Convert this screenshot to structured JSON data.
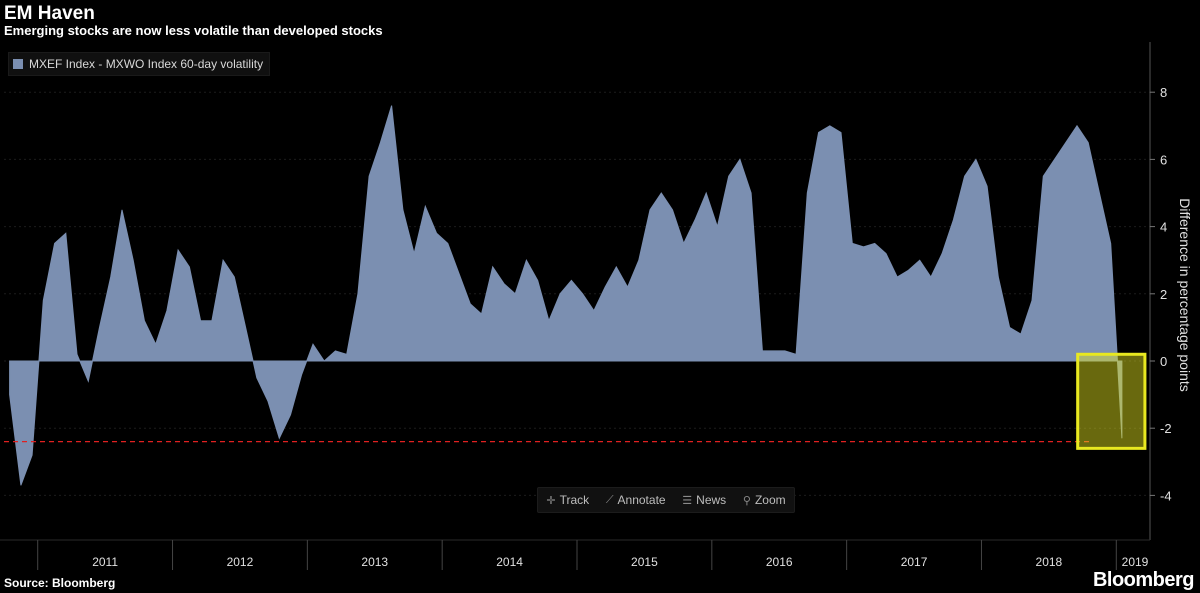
{
  "header": {
    "title": "EM Haven",
    "subtitle": "Emerging stocks are now less volatile than developed stocks"
  },
  "footer": {
    "source": "Source: Bloomberg",
    "brand": "Bloomberg"
  },
  "toolbar": {
    "track": "Track",
    "annotate": "Annotate",
    "news": "News",
    "zoom": "Zoom"
  },
  "colors": {
    "area": "#7b8fb1",
    "reference_line": "#e02020",
    "highlight": "#e8e820",
    "background": "#000000"
  },
  "chart_data": {
    "type": "area",
    "title": "EM Haven",
    "subtitle": "Emerging stocks are now less volatile than developed stocks",
    "ylabel": "Difference in percentage points",
    "ylim": [
      -5,
      9
    ],
    "y_ticks": [
      8,
      6,
      4,
      2,
      0,
      -2,
      -4
    ],
    "x_year_labels": [
      "2011",
      "2012",
      "2013",
      "2014",
      "2015",
      "2016",
      "2017",
      "2018",
      "2019"
    ],
    "legend": "top-left",
    "series": [
      {
        "name": "MXEF Index - MXWO Index 60-day volatility",
        "x": [
          "2010-10",
          "2010-11",
          "2010-12",
          "2011-01",
          "2011-02",
          "2011-03",
          "2011-04",
          "2011-05",
          "2011-06",
          "2011-07",
          "2011-08",
          "2011-09",
          "2011-10",
          "2011-11",
          "2011-12",
          "2012-01",
          "2012-02",
          "2012-03",
          "2012-04",
          "2012-05",
          "2012-06",
          "2012-07",
          "2012-08",
          "2012-09",
          "2012-10",
          "2012-11",
          "2012-12",
          "2013-01",
          "2013-02",
          "2013-03",
          "2013-04",
          "2013-05",
          "2013-06",
          "2013-07",
          "2013-08",
          "2013-09",
          "2013-10",
          "2013-11",
          "2013-12",
          "2014-01",
          "2014-02",
          "2014-03",
          "2014-04",
          "2014-05",
          "2014-06",
          "2014-07",
          "2014-08",
          "2014-09",
          "2014-10",
          "2014-11",
          "2014-12",
          "2015-01",
          "2015-02",
          "2015-03",
          "2015-04",
          "2015-05",
          "2015-06",
          "2015-07",
          "2015-08",
          "2015-09",
          "2015-10",
          "2015-11",
          "2015-12",
          "2016-01",
          "2016-02",
          "2016-03",
          "2016-04",
          "2016-05",
          "2016-06",
          "2016-07",
          "2016-08",
          "2016-09",
          "2016-10",
          "2016-11",
          "2016-12",
          "2017-01",
          "2017-02",
          "2017-03",
          "2017-04",
          "2017-05",
          "2017-06",
          "2017-07",
          "2017-08",
          "2017-09",
          "2017-10",
          "2017-11",
          "2017-12",
          "2018-01",
          "2018-02",
          "2018-03",
          "2018-04",
          "2018-05",
          "2018-06",
          "2018-07",
          "2018-08",
          "2018-09",
          "2018-10",
          "2018-11",
          "2018-12",
          "2019-01"
        ],
        "values": [
          -1.0,
          -3.7,
          -2.8,
          1.8,
          3.5,
          3.8,
          0.2,
          -0.6,
          1.0,
          2.5,
          4.5,
          3.0,
          1.2,
          0.5,
          1.5,
          3.3,
          2.8,
          1.2,
          1.2,
          3.0,
          2.5,
          1.0,
          -0.5,
          -1.2,
          -2.3,
          -1.6,
          -0.4,
          0.5,
          0.0,
          0.3,
          0.2,
          2.0,
          5.5,
          6.5,
          7.6,
          4.5,
          3.2,
          4.6,
          3.8,
          3.5,
          2.6,
          1.7,
          1.4,
          2.8,
          2.3,
          2.0,
          3.0,
          2.4,
          1.2,
          2.0,
          2.4,
          2.0,
          1.5,
          2.2,
          2.8,
          2.2,
          3.0,
          4.5,
          5.0,
          4.5,
          3.5,
          4.2,
          5.0,
          4.0,
          5.5,
          6.0,
          5.0,
          0.3,
          0.3,
          0.3,
          0.2,
          5.0,
          6.8,
          7.0,
          6.8,
          3.5,
          3.4,
          3.5,
          3.2,
          2.5,
          2.7,
          3.0,
          2.5,
          3.2,
          4.2,
          5.5,
          6.0,
          5.2,
          2.5,
          1.0,
          0.8,
          1.8,
          5.5,
          6.0,
          6.5,
          7.0,
          6.5,
          5.0,
          3.5,
          -2.3
        ]
      }
    ],
    "reference_line": {
      "y": -2.4,
      "style": "dashed"
    },
    "highlight_box": {
      "x_start": "2018-12",
      "x_end": "2019-01",
      "y_range": [
        -2.6,
        0.2
      ]
    }
  }
}
